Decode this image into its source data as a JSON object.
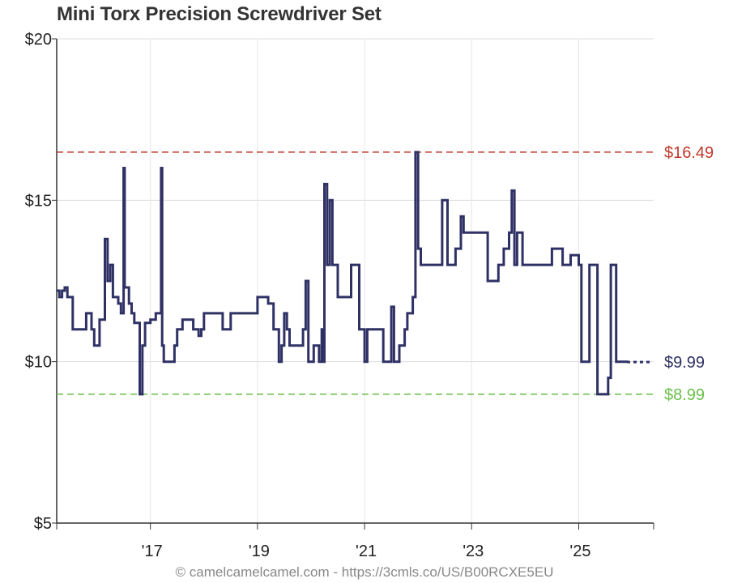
{
  "title": "Mini Torx Precision Screwdriver Set",
  "footer": "© camelcamelcamel.com - https://3cmls.co/US/B00RCXE5EU",
  "chart_data": {
    "type": "line",
    "step": true,
    "title": "Mini Torx Precision Screwdriver Set",
    "xlabel": "",
    "ylabel": "",
    "xlim": [
      2015.25,
      2026.4
    ],
    "ylim": [
      5,
      20
    ],
    "y_ticks": [
      {
        "value": 20,
        "label": "$20"
      },
      {
        "value": 15,
        "label": "$15"
      },
      {
        "value": 10,
        "label": "$10"
      },
      {
        "value": 5,
        "label": "$5"
      }
    ],
    "x_ticks": [
      {
        "value": 2017,
        "label": "'17"
      },
      {
        "value": 2019,
        "label": "'19"
      },
      {
        "value": 2021,
        "label": "'21"
      },
      {
        "value": 2023,
        "label": "'23"
      },
      {
        "value": 2025,
        "label": "'25"
      }
    ],
    "grid": true,
    "reference_lines": [
      {
        "value": 16.49,
        "label": "$16.49",
        "color": "#c0392b",
        "kind": "highest"
      },
      {
        "value": 8.99,
        "label": "$8.99",
        "color": "#6abf4b",
        "kind": "lowest"
      }
    ],
    "current_label": {
      "value": 9.99,
      "label": "$9.99",
      "color": "#2f3165"
    },
    "line_color": "#2f3165",
    "series": [
      {
        "values": [
          [
            2015.25,
            12.2
          ],
          [
            2015.3,
            12.0
          ],
          [
            2015.35,
            12.2
          ],
          [
            2015.4,
            12.3
          ],
          [
            2015.45,
            12.0
          ],
          [
            2015.55,
            11.0
          ],
          [
            2015.8,
            11.5
          ],
          [
            2015.9,
            11.0
          ],
          [
            2015.95,
            10.5
          ],
          [
            2016.05,
            11.3
          ],
          [
            2016.15,
            13.8
          ],
          [
            2016.2,
            12.5
          ],
          [
            2016.25,
            13.0
          ],
          [
            2016.3,
            12.0
          ],
          [
            2016.4,
            11.8
          ],
          [
            2016.45,
            11.5
          ],
          [
            2016.5,
            16.0
          ],
          [
            2016.52,
            12.3
          ],
          [
            2016.6,
            11.8
          ],
          [
            2016.65,
            11.5
          ],
          [
            2016.7,
            11.2
          ],
          [
            2016.8,
            8.99
          ],
          [
            2016.85,
            10.5
          ],
          [
            2016.9,
            11.2
          ],
          [
            2017.0,
            11.3
          ],
          [
            2017.1,
            11.5
          ],
          [
            2017.2,
            16.0
          ],
          [
            2017.22,
            10.5
          ],
          [
            2017.25,
            10.0
          ],
          [
            2017.45,
            10.5
          ],
          [
            2017.5,
            11.0
          ],
          [
            2017.6,
            11.3
          ],
          [
            2017.8,
            11.0
          ],
          [
            2017.9,
            10.8
          ],
          [
            2017.95,
            11.0
          ],
          [
            2018.0,
            11.5
          ],
          [
            2018.35,
            11.0
          ],
          [
            2018.5,
            11.5
          ],
          [
            2018.6,
            11.5
          ],
          [
            2018.75,
            11.5
          ],
          [
            2019.0,
            12.0
          ],
          [
            2019.2,
            11.8
          ],
          [
            2019.3,
            11.0
          ],
          [
            2019.4,
            10.0
          ],
          [
            2019.45,
            10.5
          ],
          [
            2019.5,
            11.5
          ],
          [
            2019.55,
            11.0
          ],
          [
            2019.6,
            10.5
          ],
          [
            2019.85,
            11.0
          ],
          [
            2019.9,
            12.5
          ],
          [
            2019.95,
            10.0
          ],
          [
            2020.05,
            10.5
          ],
          [
            2020.15,
            10.0
          ],
          [
            2020.2,
            11.0
          ],
          [
            2020.22,
            10.0
          ],
          [
            2020.25,
            15.5
          ],
          [
            2020.3,
            13.0
          ],
          [
            2020.35,
            15.0
          ],
          [
            2020.4,
            13.0
          ],
          [
            2020.45,
            13.0
          ],
          [
            2020.5,
            12.0
          ],
          [
            2020.75,
            13.0
          ],
          [
            2020.9,
            11.0
          ],
          [
            2021.0,
            10.0
          ],
          [
            2021.05,
            11.0
          ],
          [
            2021.35,
            10.0
          ],
          [
            2021.5,
            11.7
          ],
          [
            2021.55,
            10.0
          ],
          [
            2021.65,
            10.5
          ],
          [
            2021.75,
            11.0
          ],
          [
            2021.8,
            11.5
          ],
          [
            2021.9,
            12.0
          ],
          [
            2021.95,
            16.49
          ],
          [
            2022.0,
            13.5
          ],
          [
            2022.05,
            13.0
          ],
          [
            2022.45,
            15.0
          ],
          [
            2022.55,
            13.0
          ],
          [
            2022.7,
            13.5
          ],
          [
            2022.8,
            14.5
          ],
          [
            2022.85,
            14.0
          ],
          [
            2023.0,
            14.0
          ],
          [
            2023.3,
            12.5
          ],
          [
            2023.5,
            13.0
          ],
          [
            2023.6,
            13.5
          ],
          [
            2023.7,
            14.0
          ],
          [
            2023.75,
            15.3
          ],
          [
            2023.8,
            13.0
          ],
          [
            2023.85,
            14.0
          ],
          [
            2023.95,
            13.0
          ],
          [
            2024.5,
            13.5
          ],
          [
            2024.7,
            13.0
          ],
          [
            2024.85,
            13.3
          ],
          [
            2025.0,
            13.0
          ],
          [
            2025.05,
            10.0
          ],
          [
            2025.2,
            13.0
          ],
          [
            2025.35,
            8.99
          ],
          [
            2025.45,
            8.99
          ],
          [
            2025.5,
            8.99
          ],
          [
            2025.55,
            9.5
          ],
          [
            2025.6,
            13.0
          ],
          [
            2025.7,
            10.0
          ],
          [
            2025.9,
            9.99
          ]
        ]
      }
    ]
  }
}
